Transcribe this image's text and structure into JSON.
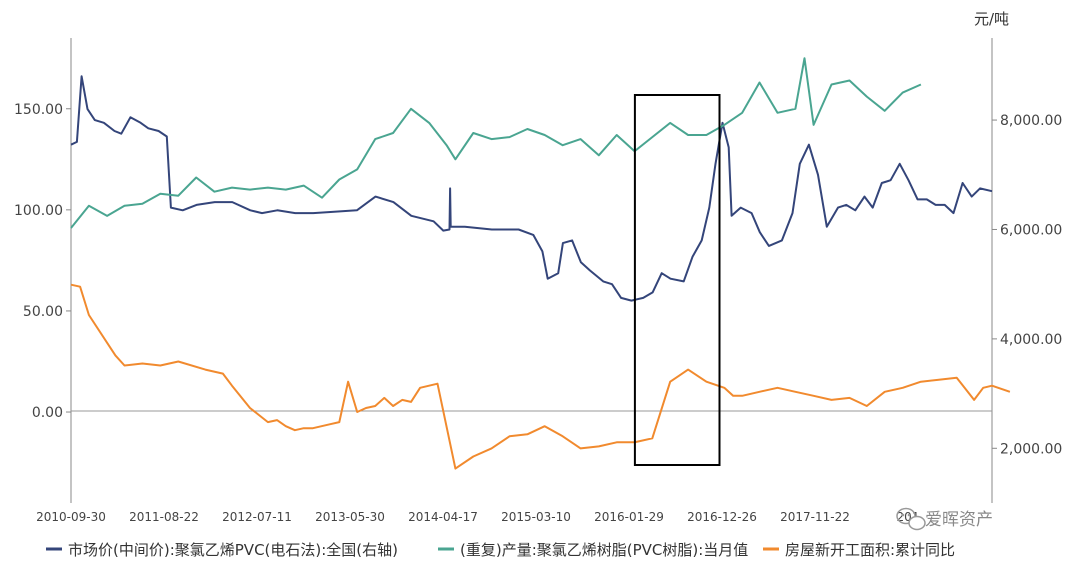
{
  "chart_data": {
    "type": "line",
    "right_axis_unit": "元/吨",
    "left_ticks": [
      "150.00",
      "100.00",
      "50.00",
      "0.00"
    ],
    "left_tick_values": [
      150,
      100,
      50,
      0
    ],
    "right_ticks": [
      "8,000.00",
      "6,000.00",
      "4,000.00",
      "2,000.00"
    ],
    "right_tick_values": [
      8000,
      6000,
      4000,
      2000
    ],
    "left_range": [
      -45,
      185
    ],
    "right_range": [
      1000,
      9500
    ],
    "x_range": [
      "2010-09-30",
      "2019-04-30"
    ],
    "x_tick_labels": [
      "2010-09-30",
      "2011-08-22",
      "2012-07-11",
      "2013-05-30",
      "2014-04-17",
      "2015-03-10",
      "2016-01-29",
      "2016-12-26",
      "2017-11-22",
      "201"
    ],
    "highlight_box": {
      "start": "2016-01-01",
      "end": "2016-10-15"
    },
    "watermark": "爱晖资产",
    "series": [
      {
        "name": "市场价(中间价):聚氯乙烯PVC(电石法):全国(右轴)",
        "color": "#34457A",
        "axis": "right",
        "points": [
          [
            "2010-09-30",
            7550
          ],
          [
            "2010-10-20",
            7600
          ],
          [
            "2010-11-05",
            8800
          ],
          [
            "2010-11-25",
            8200
          ],
          [
            "2010-12-20",
            8000
          ],
          [
            "2011-01-20",
            7950
          ],
          [
            "2011-02-25",
            7800
          ],
          [
            "2011-03-20",
            7750
          ],
          [
            "2011-04-20",
            8050
          ],
          [
            "2011-05-25",
            7950
          ],
          [
            "2011-06-20",
            7850
          ],
          [
            "2011-07-25",
            7800
          ],
          [
            "2011-08-22",
            7700
          ],
          [
            "2011-09-05",
            6400
          ],
          [
            "2011-10-15",
            6350
          ],
          [
            "2011-12-01",
            6450
          ],
          [
            "2012-02-01",
            6500
          ],
          [
            "2012-04-01",
            6500
          ],
          [
            "2012-06-01",
            6350
          ],
          [
            "2012-07-11",
            6300
          ],
          [
            "2012-09-01",
            6350
          ],
          [
            "2012-11-01",
            6300
          ],
          [
            "2013-01-01",
            6300
          ],
          [
            "2013-03-01",
            6320
          ],
          [
            "2013-05-30",
            6350
          ],
          [
            "2013-08-01",
            6600
          ],
          [
            "2013-10-01",
            6500
          ],
          [
            "2013-12-01",
            6250
          ],
          [
            "2014-02-15",
            6150
          ],
          [
            "2014-03-20",
            5980
          ],
          [
            "2014-04-10",
            6000
          ],
          [
            "2014-04-12",
            6750
          ],
          [
            "2014-04-14",
            6050
          ],
          [
            "2014-06-01",
            6050
          ],
          [
            "2014-09-01",
            6000
          ],
          [
            "2014-12-01",
            6000
          ],
          [
            "2015-01-20",
            5900
          ],
          [
            "2015-02-20",
            5600
          ],
          [
            "2015-03-10",
            5100
          ],
          [
            "2015-04-15",
            5200
          ],
          [
            "2015-05-01",
            5750
          ],
          [
            "2015-06-01",
            5800
          ],
          [
            "2015-07-01",
            5400
          ],
          [
            "2015-08-01",
            5250
          ],
          [
            "2015-09-15",
            5050
          ],
          [
            "2015-10-15",
            5000
          ],
          [
            "2015-11-15",
            4750
          ],
          [
            "2015-12-20",
            4700
          ],
          [
            "2016-01-29",
            4750
          ],
          [
            "2016-03-01",
            4850
          ],
          [
            "2016-04-01",
            5200
          ],
          [
            "2016-05-01",
            5100
          ],
          [
            "2016-06-15",
            5050
          ],
          [
            "2016-07-15",
            5500
          ],
          [
            "2016-08-15",
            5800
          ],
          [
            "2016-09-10",
            6400
          ],
          [
            "2016-10-01",
            7200
          ],
          [
            "2016-10-25",
            7950
          ],
          [
            "2016-11-15",
            7500
          ],
          [
            "2016-11-25",
            6250
          ],
          [
            "2016-12-26",
            6400
          ],
          [
            "2017-02-01",
            6300
          ],
          [
            "2017-03-01",
            5950
          ],
          [
            "2017-04-01",
            5700
          ],
          [
            "2017-05-15",
            5800
          ],
          [
            "2017-06-20",
            6300
          ],
          [
            "2017-07-15",
            7200
          ],
          [
            "2017-08-15",
            7550
          ],
          [
            "2017-09-15",
            7000
          ],
          [
            "2017-10-15",
            6050
          ],
          [
            "2017-11-22",
            6400
          ],
          [
            "2017-12-20",
            6450
          ],
          [
            "2018-01-20",
            6350
          ],
          [
            "2018-02-20",
            6600
          ],
          [
            "2018-03-20",
            6400
          ],
          [
            "2018-04-20",
            6850
          ],
          [
            "2018-05-20",
            6900
          ],
          [
            "2018-06-20",
            7200
          ],
          [
            "2018-07-20",
            6900
          ],
          [
            "2018-08-20",
            6550
          ],
          [
            "2018-09-20",
            6550
          ],
          [
            "2018-10-20",
            6450
          ],
          [
            "2018-11-20",
            6450
          ],
          [
            "2018-12-20",
            6300
          ],
          [
            "2019-01-20",
            6850
          ],
          [
            "2019-02-20",
            6600
          ],
          [
            "2019-03-20",
            6750
          ],
          [
            "2019-04-30",
            6700
          ]
        ]
      },
      {
        "name": "(重复)产量:聚氯乙烯树脂(PVC树脂):当月值",
        "color": "#4AA591",
        "axis": "left",
        "points": [
          [
            "2010-09-30",
            91
          ],
          [
            "2010-11-30",
            102
          ],
          [
            "2011-01-31",
            97
          ],
          [
            "2011-03-31",
            102
          ],
          [
            "2011-05-31",
            103
          ],
          [
            "2011-07-31",
            108
          ],
          [
            "2011-09-30",
            107
          ],
          [
            "2011-11-30",
            116
          ],
          [
            "2012-01-31",
            109
          ],
          [
            "2012-03-31",
            111
          ],
          [
            "2012-05-31",
            110
          ],
          [
            "2012-07-31",
            111
          ],
          [
            "2012-09-30",
            110
          ],
          [
            "2012-11-30",
            112
          ],
          [
            "2013-01-31",
            106
          ],
          [
            "2013-03-31",
            115
          ],
          [
            "2013-05-31",
            120
          ],
          [
            "2013-07-31",
            135
          ],
          [
            "2013-09-30",
            138
          ],
          [
            "2013-11-30",
            150
          ],
          [
            "2014-01-31",
            143
          ],
          [
            "2014-03-31",
            132
          ],
          [
            "2014-04-30",
            125
          ],
          [
            "2014-06-30",
            138
          ],
          [
            "2014-08-31",
            135
          ],
          [
            "2014-10-31",
            136
          ],
          [
            "2014-12-31",
            140
          ],
          [
            "2015-02-28",
            137
          ],
          [
            "2015-04-30",
            132
          ],
          [
            "2015-06-30",
            135
          ],
          [
            "2015-08-31",
            127
          ],
          [
            "2015-10-31",
            137
          ],
          [
            "2015-12-31",
            129
          ],
          [
            "2016-02-29",
            136
          ],
          [
            "2016-04-30",
            143
          ],
          [
            "2016-06-30",
            137
          ],
          [
            "2016-08-31",
            137
          ],
          [
            "2016-10-31",
            142
          ],
          [
            "2016-12-31",
            148
          ],
          [
            "2017-02-28",
            163
          ],
          [
            "2017-04-30",
            148
          ],
          [
            "2017-06-30",
            150
          ],
          [
            "2017-07-31",
            175
          ],
          [
            "2017-08-31",
            142
          ],
          [
            "2017-10-31",
            162
          ],
          [
            "2017-12-31",
            164
          ],
          [
            "2018-02-28",
            156
          ],
          [
            "2018-04-30",
            149
          ],
          [
            "2018-06-30",
            158
          ],
          [
            "2018-08-31",
            162
          ]
        ]
      },
      {
        "name": "房屋新开工面积:累计同比",
        "color": "#F18A2E",
        "axis": "left",
        "points": [
          [
            "2010-09-30",
            63
          ],
          [
            "2010-10-31",
            62
          ],
          [
            "2010-11-30",
            48
          ],
          [
            "2011-02-28",
            28
          ],
          [
            "2011-03-31",
            23
          ],
          [
            "2011-05-31",
            24
          ],
          [
            "2011-07-31",
            23
          ],
          [
            "2011-09-30",
            25
          ],
          [
            "2011-12-31",
            21
          ],
          [
            "2012-02-29",
            19
          ],
          [
            "2012-03-31",
            13
          ],
          [
            "2012-05-31",
            2
          ],
          [
            "2012-07-31",
            -5
          ],
          [
            "2012-08-31",
            -4
          ],
          [
            "2012-09-30",
            -7
          ],
          [
            "2012-10-31",
            -9
          ],
          [
            "2012-11-30",
            -8
          ],
          [
            "2012-12-31",
            -8
          ],
          [
            "2013-02-28",
            -6
          ],
          [
            "2013-03-31",
            -5
          ],
          [
            "2013-04-30",
            15
          ],
          [
            "2013-05-31",
            0
          ],
          [
            "2013-06-30",
            2
          ],
          [
            "2013-07-31",
            3
          ],
          [
            "2013-08-31",
            7
          ],
          [
            "2013-09-30",
            3
          ],
          [
            "2013-10-31",
            6
          ],
          [
            "2013-11-30",
            5
          ],
          [
            "2013-12-31",
            12
          ],
          [
            "2014-02-28",
            14
          ],
          [
            "2014-04-30",
            -28
          ],
          [
            "2014-06-30",
            -22
          ],
          [
            "2014-08-31",
            -18
          ],
          [
            "2014-10-31",
            -12
          ],
          [
            "2014-12-31",
            -11
          ],
          [
            "2015-02-28",
            -7
          ],
          [
            "2015-04-30",
            -12
          ],
          [
            "2015-06-30",
            -18
          ],
          [
            "2015-08-31",
            -17
          ],
          [
            "2015-10-31",
            -15
          ],
          [
            "2015-12-31",
            -15
          ],
          [
            "2016-02-29",
            -13
          ],
          [
            "2016-04-30",
            15
          ],
          [
            "2016-05-31",
            18
          ],
          [
            "2016-06-30",
            21
          ],
          [
            "2016-08-31",
            15
          ],
          [
            "2016-10-31",
            12
          ],
          [
            "2016-11-30",
            8
          ],
          [
            "2016-12-31",
            8
          ],
          [
            "2017-02-28",
            10
          ],
          [
            "2017-04-30",
            12
          ],
          [
            "2017-06-30",
            10
          ],
          [
            "2017-08-31",
            8
          ],
          [
            "2017-10-31",
            6
          ],
          [
            "2017-12-31",
            7
          ],
          [
            "2018-02-28",
            3
          ],
          [
            "2018-04-30",
            10
          ],
          [
            "2018-06-30",
            12
          ],
          [
            "2018-08-31",
            15
          ],
          [
            "2018-10-31",
            16
          ],
          [
            "2018-12-31",
            17
          ],
          [
            "2019-02-28",
            6
          ],
          [
            "2019-03-31",
            12
          ],
          [
            "2019-04-30",
            13
          ],
          [
            "2019-06-30",
            10
          ]
        ]
      }
    ]
  }
}
